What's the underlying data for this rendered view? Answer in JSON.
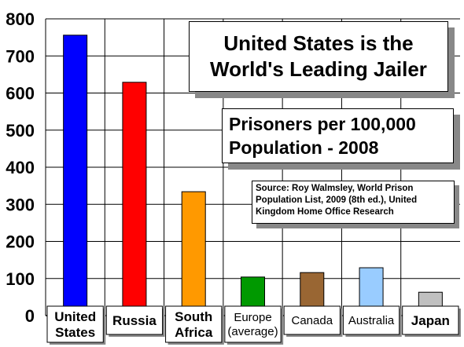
{
  "chart_data": {
    "type": "bar",
    "title": [
      "United States is the",
      "World's Leading Jailer"
    ],
    "subtitle": [
      "Prisoners per 100,000",
      "Population - 2008"
    ],
    "source": [
      "Source: Roy Walmsley, World Prison",
      "Population List, 2009 (8th ed.), United",
      "Kingdom Home Office Research"
    ],
    "categories": [
      [
        "United",
        "States"
      ],
      [
        "Russia"
      ],
      [
        "South",
        "Africa"
      ],
      [
        "Europe",
        "(average)"
      ],
      [
        "Canada"
      ],
      [
        "Australia"
      ],
      [
        "Japan"
      ]
    ],
    "category_bold": [
      true,
      true,
      true,
      false,
      false,
      false,
      true
    ],
    "values": [
      756,
      629,
      334,
      104,
      116,
      129,
      63
    ],
    "colors": [
      "#0000ff",
      "#ff0000",
      "#ff9900",
      "#009900",
      "#996633",
      "#99ccff",
      "#c0c0c0"
    ],
    "ylim": [
      0,
      800
    ],
    "yticks": [
      0,
      100,
      200,
      300,
      400,
      500,
      600,
      700,
      800
    ],
    "xlabel": "",
    "ylabel": "",
    "grid": true
  }
}
